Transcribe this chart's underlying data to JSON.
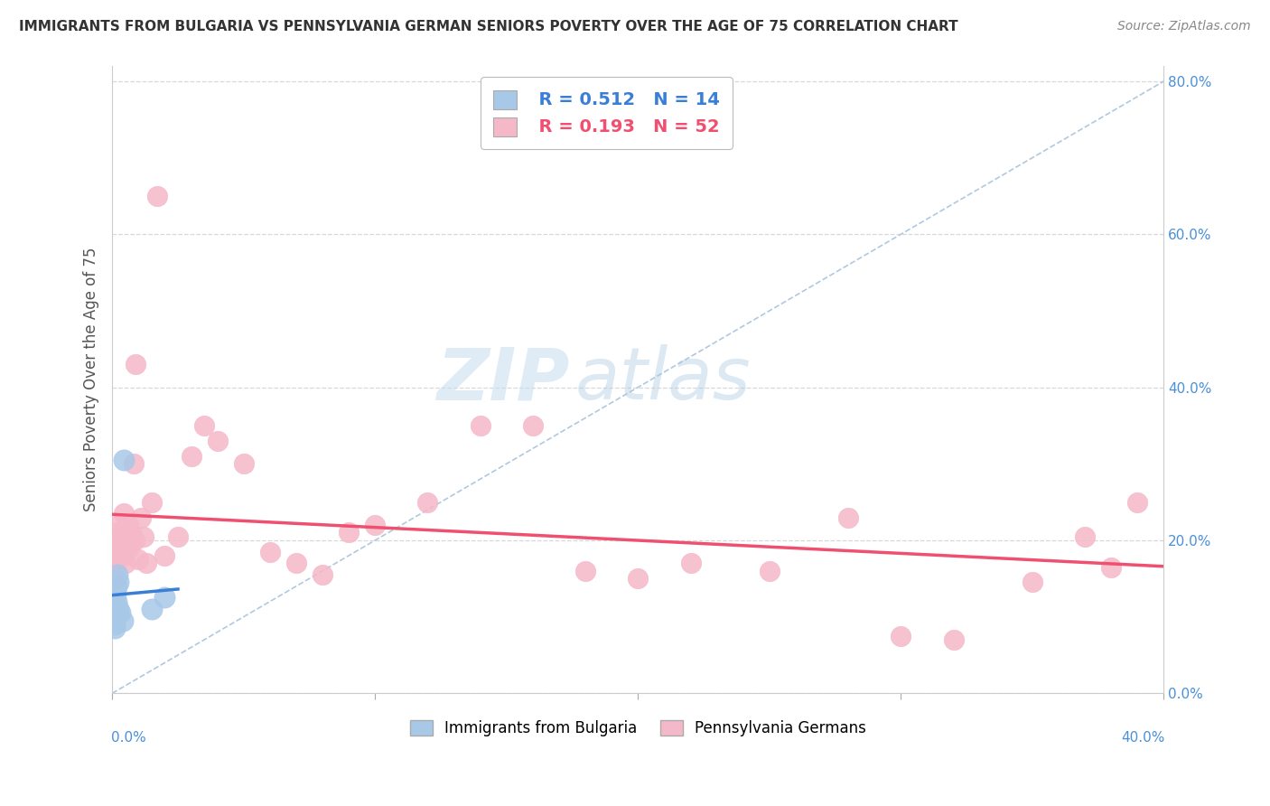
{
  "title": "IMMIGRANTS FROM BULGARIA VS PENNSYLVANIA GERMAN SENIORS POVERTY OVER THE AGE OF 75 CORRELATION CHART",
  "source": "Source: ZipAtlas.com",
  "ylabel": "Seniors Poverty Over the Age of 75",
  "legend1_r": "R = 0.512",
  "legend1_n": "N = 14",
  "legend2_r": "R = 0.193",
  "legend2_n": "N = 52",
  "legend_label1": "Immigrants from Bulgaria",
  "legend_label2": "Pennsylvania Germans",
  "color_bulgaria": "#a8c8e8",
  "color_pa_german": "#f5b8c8",
  "color_line_bulgaria": "#3a7fd5",
  "color_line_pa_german": "#f05070",
  "bg_color": "#ffffff",
  "watermark_zip": "ZIP",
  "watermark_atlas": "atlas",
  "bulgaria_x": [
    0.05,
    0.08,
    0.1,
    0.12,
    0.15,
    0.18,
    0.2,
    0.22,
    0.25,
    0.3,
    0.4,
    0.45,
    1.5,
    2.0
  ],
  "bulgaria_y": [
    10.0,
    9.0,
    8.5,
    13.0,
    12.0,
    14.0,
    15.5,
    14.5,
    11.0,
    10.5,
    9.5,
    30.5,
    11.0,
    12.5
  ],
  "pa_german_x": [
    0.05,
    0.08,
    0.1,
    0.12,
    0.15,
    0.18,
    0.2,
    0.22,
    0.25,
    0.3,
    0.35,
    0.4,
    0.45,
    0.5,
    0.55,
    0.6,
    0.65,
    0.7,
    0.8,
    0.85,
    0.9,
    1.0,
    1.1,
    1.2,
    1.3,
    1.5,
    1.7,
    2.0,
    2.5,
    3.0,
    3.5,
    4.0,
    5.0,
    6.0,
    7.0,
    8.0,
    9.0,
    10.0,
    12.0,
    14.0,
    16.0,
    18.0,
    20.0,
    22.0,
    25.0,
    28.0,
    30.0,
    32.0,
    35.0,
    37.0,
    38.0,
    39.0
  ],
  "pa_german_y": [
    17.0,
    18.5,
    16.5,
    15.0,
    18.0,
    20.0,
    19.5,
    21.0,
    22.0,
    18.5,
    19.5,
    18.0,
    23.5,
    17.0,
    19.5,
    22.0,
    19.0,
    21.0,
    30.0,
    20.0,
    43.0,
    17.5,
    23.0,
    20.5,
    17.0,
    25.0,
    65.0,
    18.0,
    20.5,
    31.0,
    35.0,
    33.0,
    30.0,
    18.5,
    17.0,
    15.5,
    21.0,
    22.0,
    25.0,
    35.0,
    35.0,
    16.0,
    15.0,
    17.0,
    16.0,
    23.0,
    7.5,
    7.0,
    14.5,
    20.5,
    16.5,
    25.0
  ],
  "xlim": [
    0.0,
    40.0
  ],
  "ylim": [
    0.0,
    82.0
  ],
  "xticks": [
    0.0,
    10.0,
    20.0,
    30.0,
    40.0
  ],
  "yticks": [
    0.0,
    20.0,
    40.0,
    60.0,
    80.0
  ]
}
